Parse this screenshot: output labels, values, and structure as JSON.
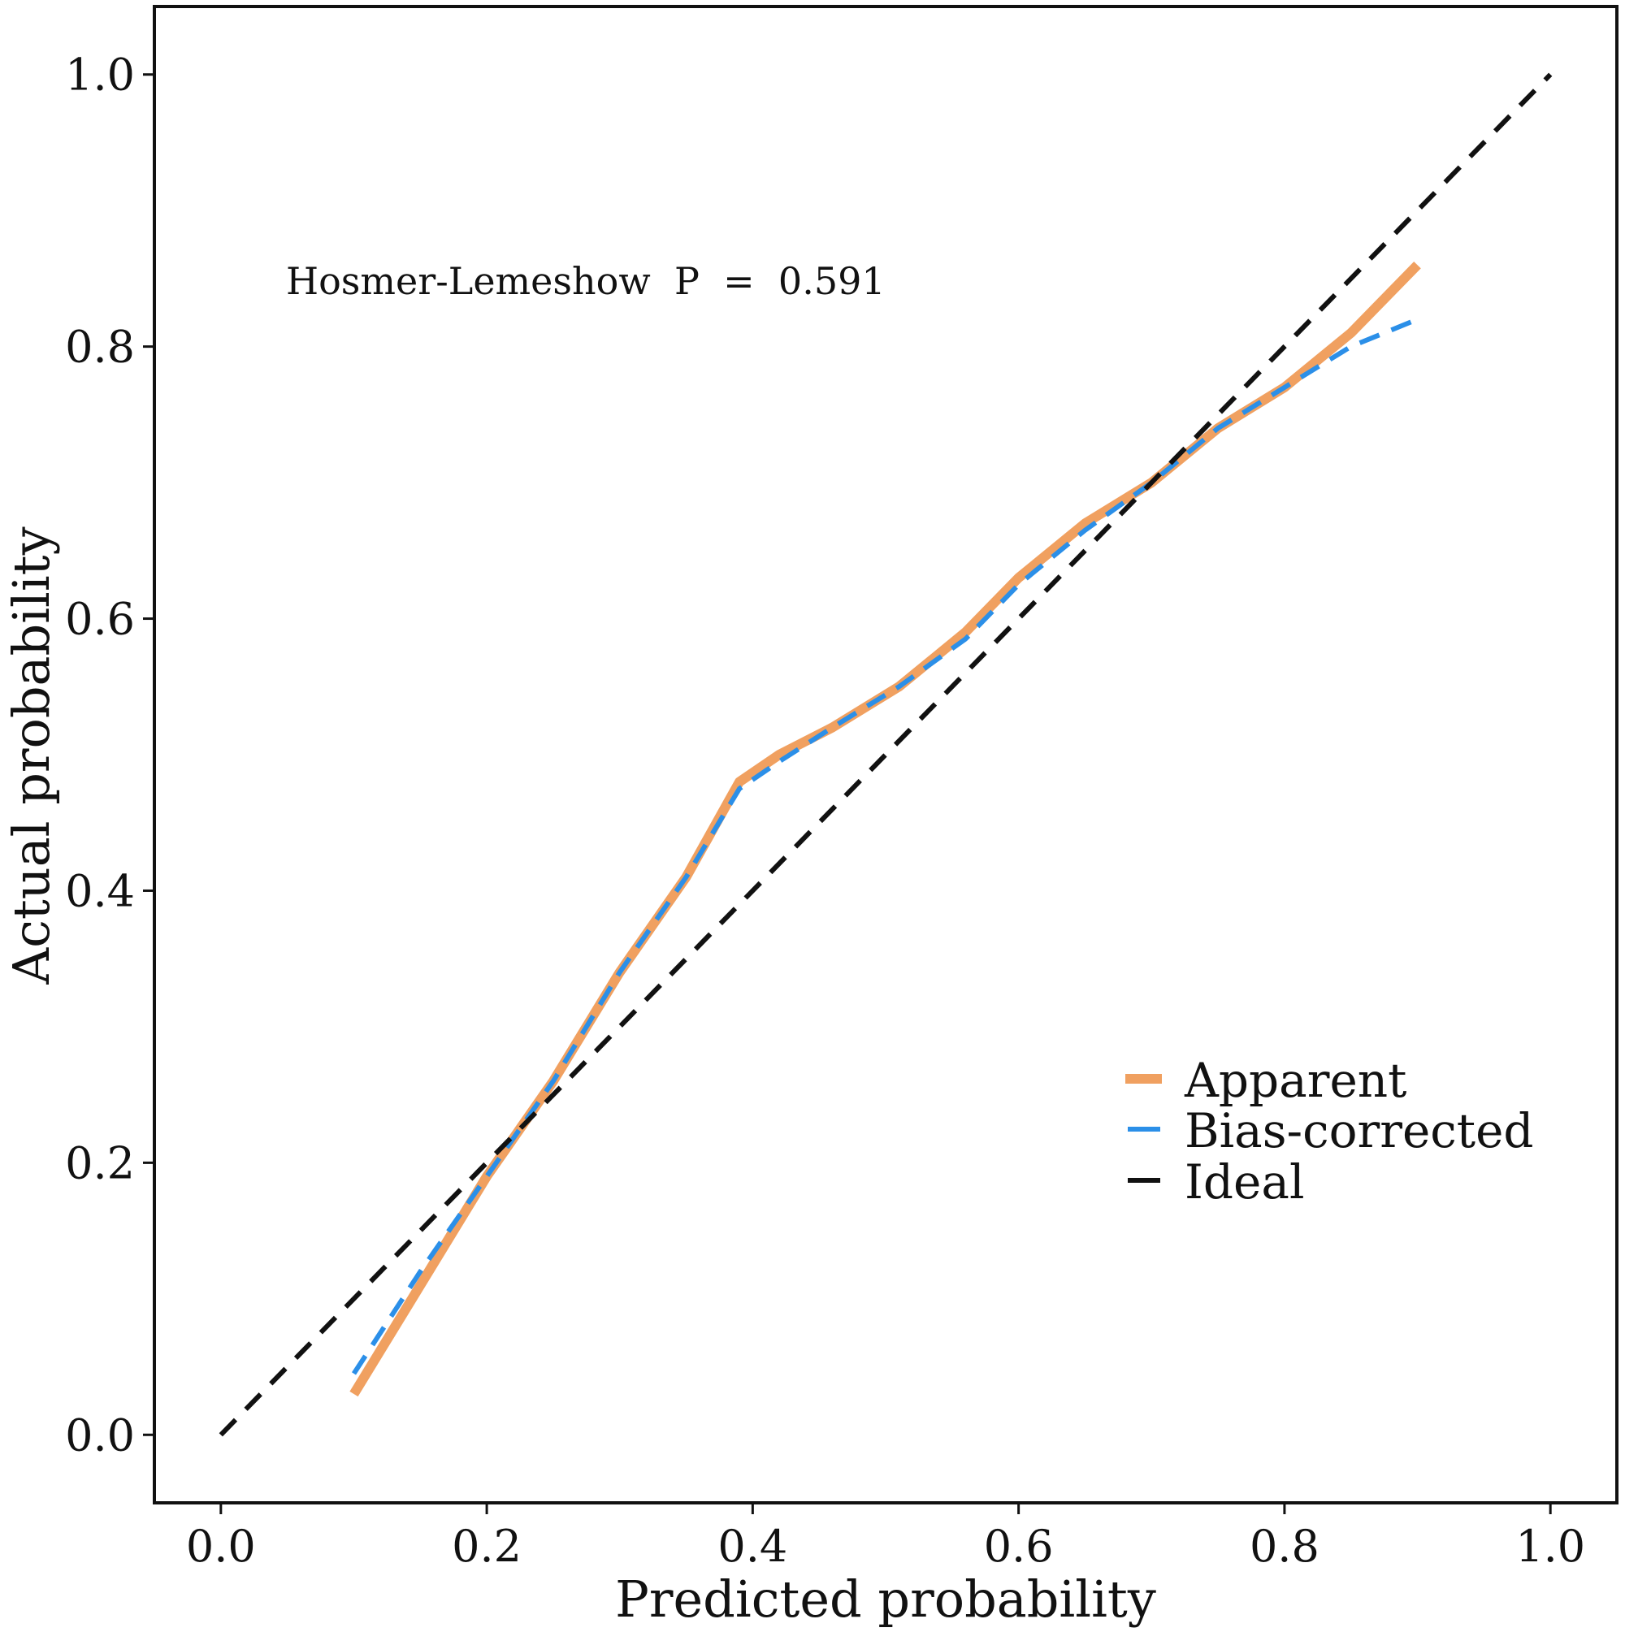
{
  "chart_data": {
    "type": "line",
    "title": "",
    "xlabel": "Predicted probability",
    "ylabel": "Actual probability",
    "xlim": [
      -0.05,
      1.05
    ],
    "ylim": [
      -0.05,
      1.05
    ],
    "x_ticks": [
      0.0,
      0.2,
      0.4,
      0.6,
      0.8,
      1.0
    ],
    "x_tick_labels": [
      "0.0",
      "0.2",
      "0.4",
      "0.6",
      "0.8",
      "1.0"
    ],
    "y_ticks": [
      0.0,
      0.2,
      0.4,
      0.6,
      0.8,
      1.0
    ],
    "y_tick_labels": [
      "0.0",
      "0.2",
      "0.4",
      "0.6",
      "0.8",
      "1.0"
    ],
    "grid": false,
    "annotation": "Hosmer-Lemeshow  P  =  0.591",
    "legend_position": "bottom-right",
    "series": [
      {
        "name": "Apparent",
        "color": "#f0a060",
        "style": "solid",
        "x": [
          0.1,
          0.15,
          0.2,
          0.25,
          0.3,
          0.35,
          0.39,
          0.42,
          0.46,
          0.51,
          0.56,
          0.6,
          0.65,
          0.7,
          0.75,
          0.8,
          0.85,
          0.9
        ],
        "y": [
          0.03,
          0.11,
          0.19,
          0.26,
          0.34,
          0.41,
          0.48,
          0.5,
          0.52,
          0.55,
          0.59,
          0.63,
          0.67,
          0.7,
          0.74,
          0.77,
          0.81,
          0.86
        ]
      },
      {
        "name": "Bias-corrected",
        "color": "#2b8fe8",
        "style": "dashed",
        "x": [
          0.1,
          0.15,
          0.2,
          0.25,
          0.3,
          0.35,
          0.39,
          0.42,
          0.46,
          0.51,
          0.56,
          0.6,
          0.65,
          0.7,
          0.75,
          0.8,
          0.85,
          0.9
        ],
        "y": [
          0.045,
          0.12,
          0.19,
          0.26,
          0.34,
          0.41,
          0.475,
          0.495,
          0.52,
          0.55,
          0.585,
          0.625,
          0.665,
          0.7,
          0.74,
          0.77,
          0.8,
          0.82
        ]
      },
      {
        "name": "Ideal",
        "color": "#111111",
        "style": "dashed",
        "x": [
          0.0,
          1.0
        ],
        "y": [
          0.0,
          1.0
        ]
      }
    ]
  }
}
